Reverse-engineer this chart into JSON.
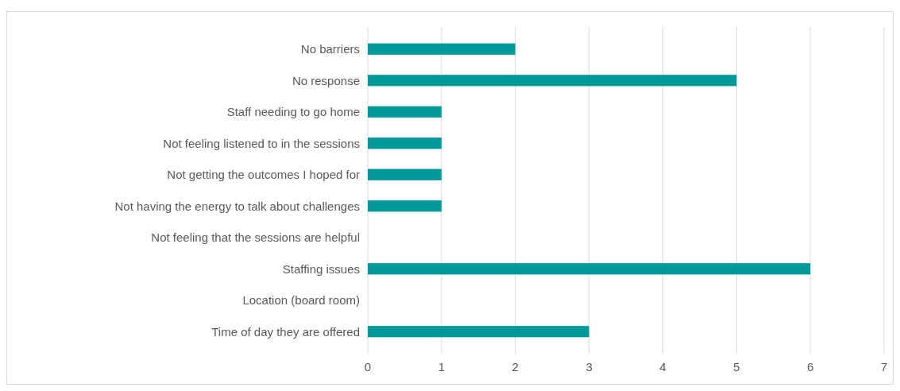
{
  "chart_data": {
    "type": "bar",
    "orientation": "horizontal",
    "categories": [
      "No barriers",
      "No response",
      "Staff needing to go home",
      "Not feeling listened to in the sessions",
      "Not getting the outcomes I hoped for",
      "Not having the energy to talk about challenges",
      "Not feeling that the sessions are helpful",
      "Staffing issues",
      "Location (board room)",
      "Time of day they are offered"
    ],
    "values": [
      2,
      5,
      1,
      1,
      1,
      1,
      0,
      6,
      0,
      3
    ],
    "color": "#009999",
    "xlim": [
      0,
      7
    ],
    "xticks": [
      0,
      1,
      2,
      3,
      4,
      5,
      6,
      7
    ],
    "grid": "x"
  }
}
